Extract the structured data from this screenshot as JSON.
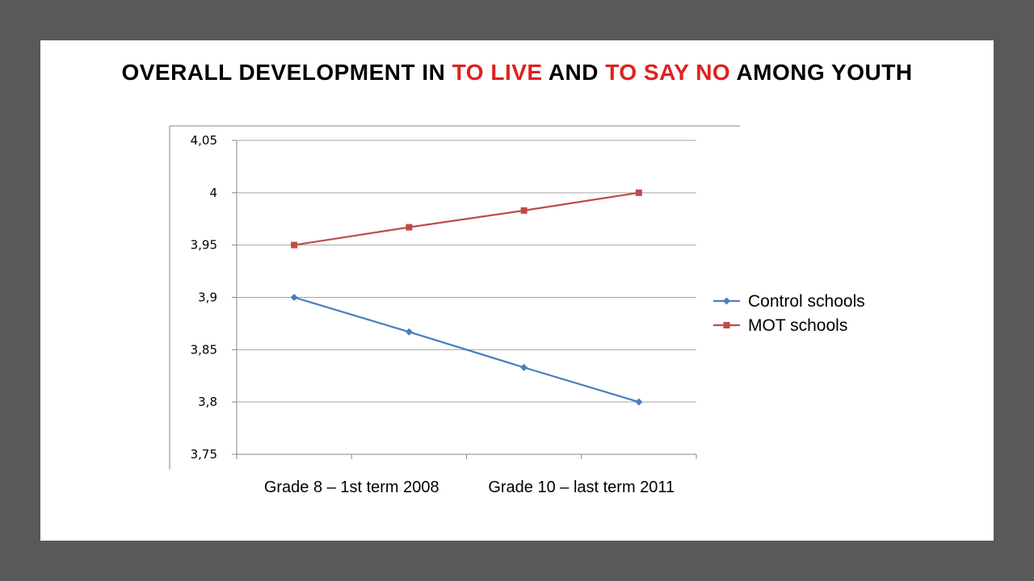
{
  "title": {
    "parts": [
      {
        "text": "OVERALL DEVELOPMENT IN ",
        "highlight": false
      },
      {
        "text": "TO LIVE",
        "highlight": true
      },
      {
        "text": " AND ",
        "highlight": false
      },
      {
        "text": "TO SAY NO",
        "highlight": true
      },
      {
        "text": " AMONG YOUTH",
        "highlight": false
      }
    ],
    "highlight_color": "#e02020"
  },
  "chart_data": {
    "type": "line",
    "title": "OVERALL DEVELOPMENT IN TO LIVE AND TO SAY NO AMONG YOUTH",
    "xlabel": "",
    "ylabel": "",
    "x_tick_labels": [
      "Grade 8 – 1st term 2008",
      "Grade 10 – last term 2011"
    ],
    "x_points": 4,
    "ylim": [
      3.75,
      4.05
    ],
    "y_ticks": [
      3.75,
      3.8,
      3.85,
      3.9,
      3.95,
      4,
      4.05
    ],
    "y_tick_labels": [
      "3,75",
      "3,8",
      "3,85",
      "3,9",
      "3,95",
      "4",
      "4,05"
    ],
    "grid": true,
    "legend_position": "right",
    "series": [
      {
        "name": "Control schools",
        "values": [
          3.9,
          3.867,
          3.833,
          3.8
        ],
        "color": "#4a7ebb",
        "marker": "diamond"
      },
      {
        "name": "MOT schools",
        "values": [
          3.95,
          3.967,
          3.983,
          4.0
        ],
        "color": "#be4b48",
        "marker": "square"
      }
    ]
  }
}
